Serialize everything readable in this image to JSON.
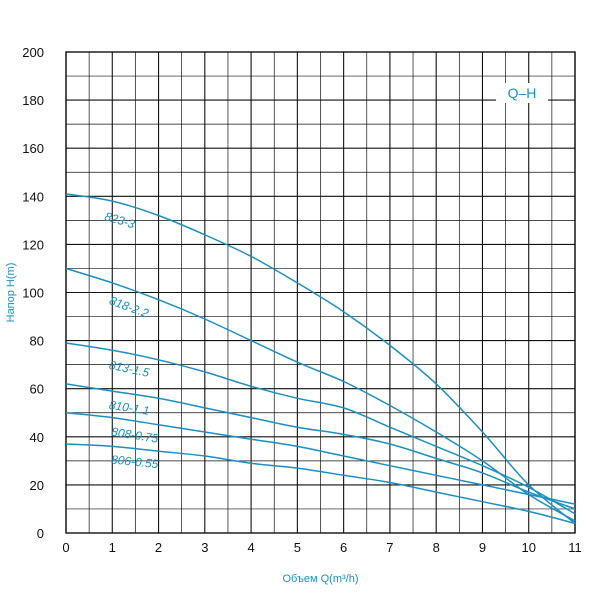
{
  "chart_data": {
    "type": "line",
    "title": "",
    "legend_label": "Q–H",
    "xlabel": "Объем Q(m³/h)",
    "ylabel": "Напор H(m)",
    "xlim": [
      0,
      11
    ],
    "ylim": [
      0,
      200
    ],
    "x_ticks": [
      0,
      1,
      2,
      3,
      4,
      5,
      6,
      7,
      8,
      9,
      10,
      11
    ],
    "y_ticks": [
      0,
      20,
      40,
      60,
      80,
      100,
      120,
      140,
      160,
      180,
      200
    ],
    "grid": true,
    "colors": {
      "curve": "#1a8fc4",
      "grid": "#111111",
      "text": "#111111",
      "accent": "#1a8fc4"
    },
    "series": [
      {
        "name": "823-3",
        "x": [
          0,
          1,
          2,
          3,
          4,
          5,
          6,
          7,
          8,
          9,
          10,
          11
        ],
        "y": [
          141,
          138,
          132,
          124,
          115,
          104,
          92,
          78,
          62,
          42,
          20,
          4
        ]
      },
      {
        "name": "818-2.2",
        "x": [
          0,
          1,
          2,
          3,
          4,
          5,
          6,
          7,
          8,
          9,
          10,
          11
        ],
        "y": [
          110,
          104,
          97,
          89,
          80,
          71,
          63,
          53,
          42,
          30,
          16,
          5
        ]
      },
      {
        "name": "813-1.5",
        "x": [
          0,
          1,
          2,
          3,
          4,
          5,
          6,
          7,
          8,
          9,
          10,
          11
        ],
        "y": [
          79,
          76,
          72,
          67,
          61,
          56,
          52,
          44,
          36,
          28,
          19,
          8
        ]
      },
      {
        "name": "810-1.1",
        "x": [
          0,
          1,
          2,
          3,
          4,
          5,
          6,
          7,
          8,
          9,
          10,
          11
        ],
        "y": [
          62,
          59,
          56,
          52,
          48,
          44,
          41,
          37,
          31,
          25,
          17,
          10
        ]
      },
      {
        "name": "808-0.75",
        "x": [
          0,
          1,
          2,
          3,
          4,
          5,
          6,
          7,
          8,
          9,
          10,
          11
        ],
        "y": [
          50,
          48,
          45,
          42,
          39,
          36,
          32,
          28,
          24,
          20,
          16,
          12
        ]
      },
      {
        "name": "806-0.55",
        "x": [
          0,
          1,
          2,
          3,
          4,
          5,
          6,
          7,
          8,
          9,
          10,
          11
        ],
        "y": [
          37,
          36,
          34,
          32,
          29,
          27,
          24,
          21,
          17,
          13,
          9,
          4
        ]
      }
    ]
  }
}
